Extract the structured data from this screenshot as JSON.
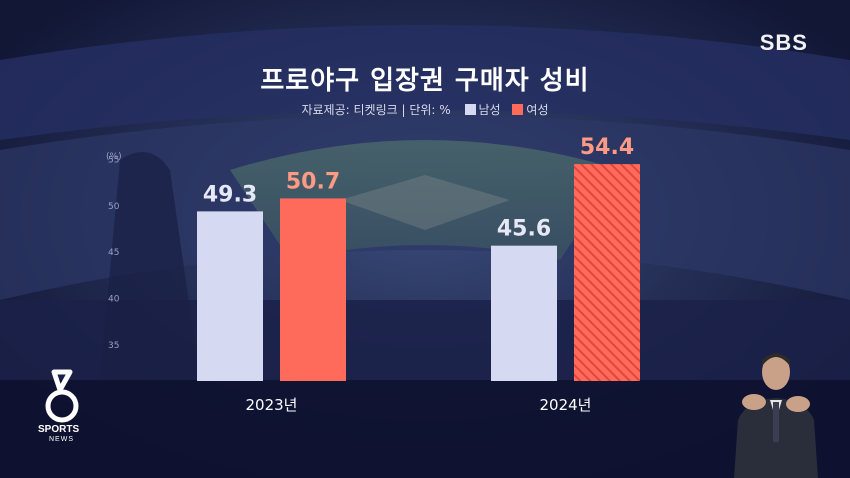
{
  "broadcaster": "SBS",
  "title": "프로야구 입장권 구매자 성비",
  "source_text": "자료제공: 티켓링크 | 단위: %",
  "sub_brand": {
    "line1": "SPORTS",
    "line2": "NEWS"
  },
  "colors": {
    "male": "#d6d9f2",
    "female": "#ff6b5b",
    "female_label": "#ff9a84",
    "male_label": "#e6e8f6"
  },
  "chart_data": {
    "type": "bar",
    "categories": [
      "2023년",
      "2024년"
    ],
    "series": [
      {
        "name": "남성",
        "values": [
          49.3,
          45.6
        ]
      },
      {
        "name": "여성",
        "values": [
          50.7,
          54.4
        ]
      }
    ],
    "ylabel": "(%)",
    "yticks": [
      35,
      40,
      45,
      50,
      55
    ],
    "ylim": [
      31,
      57
    ],
    "legend": "top",
    "grid": false
  }
}
